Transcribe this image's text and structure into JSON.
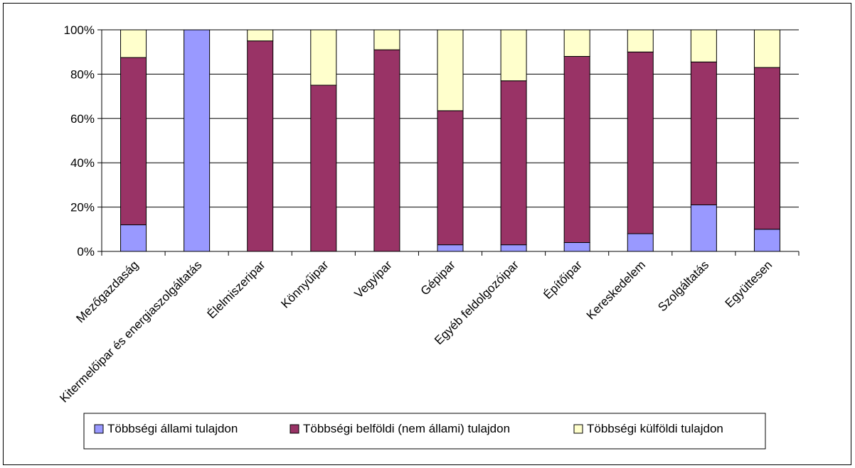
{
  "chart_data": {
    "type": "bar",
    "stacked": true,
    "percent": true,
    "categories": [
      "Mezőgazdaság",
      "Kitermelőipar és energiaszolgáltatás",
      "Élelmiszeripar",
      "Könnyűipar",
      "Vegyipar",
      "Gépipar",
      "Egyéb feldolgozóipar",
      "Építőipar",
      "Kereskedelem",
      "Szolgáltatás",
      "Együttesen"
    ],
    "series": [
      {
        "name": "Többségi állami tulajdon",
        "color": "#9999ff",
        "values": [
          12,
          100,
          0,
          0,
          0,
          3,
          3,
          4,
          8,
          21,
          10
        ]
      },
      {
        "name": "Többségi belföldi (nem állami) tulajdon",
        "color": "#993366",
        "values": [
          75.5,
          0,
          95,
          75,
          91,
          60.5,
          74,
          84,
          82,
          64.5,
          73
        ]
      },
      {
        "name": "Többségi külföldi tulajdon",
        "color": "#ffffcc",
        "values": [
          12.5,
          0,
          5,
          25,
          9,
          36.5,
          23,
          12,
          10,
          14.5,
          17
        ]
      }
    ],
    "ylim": [
      0,
      100
    ],
    "yticks": [
      "0%",
      "20%",
      "40%",
      "60%",
      "80%",
      "100%"
    ],
    "grid": true,
    "legend": "bottom"
  }
}
